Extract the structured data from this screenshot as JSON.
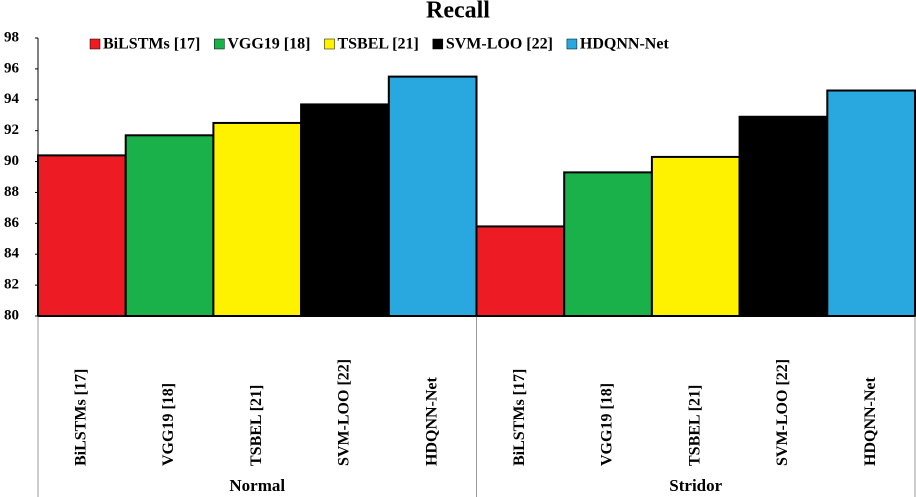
{
  "chart_data": {
    "type": "bar",
    "title": "Recall",
    "categories": [
      "Normal",
      "Stridor"
    ],
    "series": [
      {
        "name": "BiLSTMs [17]",
        "color": "#ed1c24",
        "values": [
          90.4,
          85.8
        ]
      },
      {
        "name": "VGG19 [18]",
        "color": "#1ab14b",
        "values": [
          91.7,
          89.3
        ]
      },
      {
        "name": "TSBEL [21]",
        "color": "#fff200",
        "values": [
          92.5,
          90.3
        ]
      },
      {
        "name": "SVM-LOO [22]",
        "color": "#000000",
        "values": [
          93.7,
          92.9
        ]
      },
      {
        "name": "HDQNN-Net",
        "color": "#29a8e0",
        "values": [
          95.5,
          94.6
        ]
      }
    ],
    "ylim": [
      80,
      98
    ],
    "yticks": [
      80,
      82,
      84,
      86,
      88,
      90,
      92,
      94,
      96,
      98
    ],
    "grid": false,
    "legend": "top"
  }
}
